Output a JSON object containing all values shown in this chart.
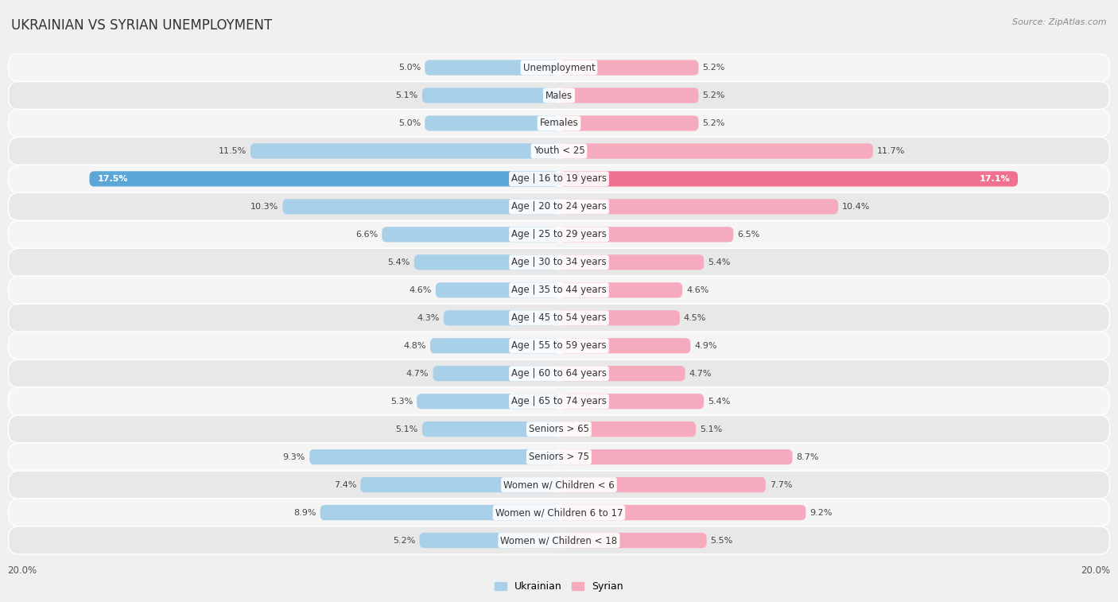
{
  "title": "UKRAINIAN VS SYRIAN UNEMPLOYMENT",
  "source": "Source: ZipAtlas.com",
  "categories": [
    "Unemployment",
    "Males",
    "Females",
    "Youth < 25",
    "Age | 16 to 19 years",
    "Age | 20 to 24 years",
    "Age | 25 to 29 years",
    "Age | 30 to 34 years",
    "Age | 35 to 44 years",
    "Age | 45 to 54 years",
    "Age | 55 to 59 years",
    "Age | 60 to 64 years",
    "Age | 65 to 74 years",
    "Seniors > 65",
    "Seniors > 75",
    "Women w/ Children < 6",
    "Women w/ Children 6 to 17",
    "Women w/ Children < 18"
  ],
  "ukrainian_values": [
    5.0,
    5.1,
    5.0,
    11.5,
    17.5,
    10.3,
    6.6,
    5.4,
    4.6,
    4.3,
    4.8,
    4.7,
    5.3,
    5.1,
    9.3,
    7.4,
    8.9,
    5.2
  ],
  "syrian_values": [
    5.2,
    5.2,
    5.2,
    11.7,
    17.1,
    10.4,
    6.5,
    5.4,
    4.6,
    4.5,
    4.9,
    4.7,
    5.4,
    5.1,
    8.7,
    7.7,
    9.2,
    5.5
  ],
  "ukrainian_color": "#A8D0E8",
  "syrian_color": "#F5AABE",
  "ukrainian_highlight_color": "#5BA8D8",
  "syrian_highlight_color": "#F07090",
  "row_bg_even": "#F5F5F5",
  "row_bg_odd": "#E8E8E8",
  "background_color": "#F0F0F0",
  "bar_height": 0.55,
  "x_max": 20.0,
  "title_fontsize": 12,
  "label_fontsize": 8.5,
  "value_fontsize": 8,
  "legend_labels": [
    "Ukrainian",
    "Syrian"
  ]
}
